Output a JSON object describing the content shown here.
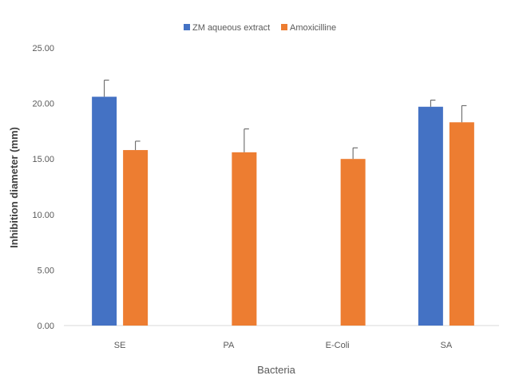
{
  "chart_data": {
    "type": "bar",
    "categories": [
      "SE",
      "PA",
      "E-Coli",
      "SA"
    ],
    "series": [
      {
        "name": "ZM aqueous extract",
        "color": "#4472C4",
        "values": [
          20.6,
          0,
          0,
          19.7
        ],
        "errors": [
          1.5,
          null,
          null,
          0.6
        ]
      },
      {
        "name": "Amoxicilline",
        "color": "#ED7D31",
        "values": [
          15.8,
          15.6,
          15.0,
          18.3
        ],
        "errors": [
          0.8,
          2.1,
          1.0,
          1.5
        ]
      }
    ],
    "xlabel": "Bacteria",
    "ylabel": "Inhibition diameter (mm)",
    "ylim": [
      0,
      25
    ],
    "yticks": [
      "0.00",
      "5.00",
      "10.00",
      "15.00",
      "20.00",
      "25.00"
    ],
    "ytick_values": [
      0,
      5,
      10,
      15,
      20,
      25
    ],
    "grid": false,
    "legend_position": "top-center"
  }
}
